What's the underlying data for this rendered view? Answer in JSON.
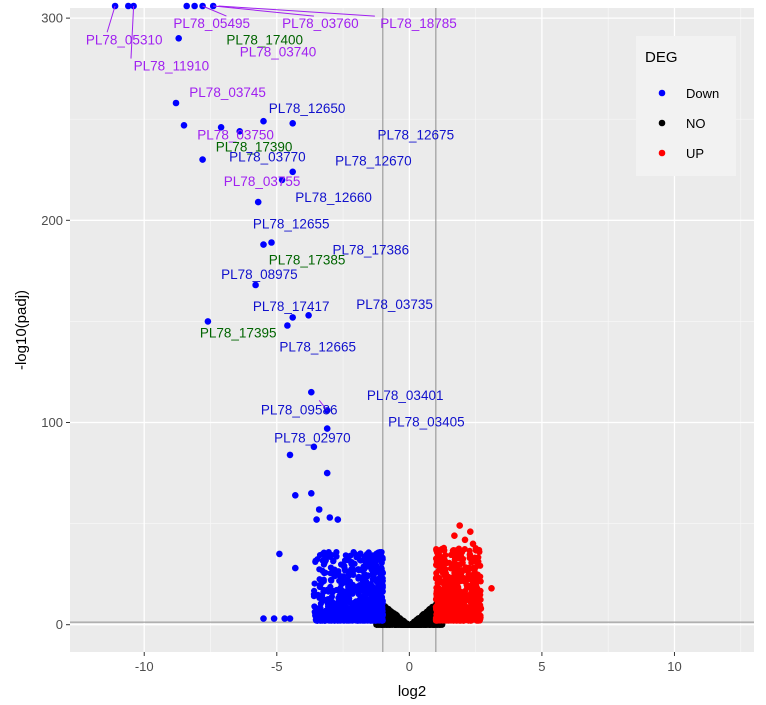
{
  "chart_data": {
    "type": "scatter",
    "title": "",
    "xlabel": "log2",
    "ylabel": "-log10(padj)",
    "xlim": [
      -12.8,
      13.0
    ],
    "ylim": [
      -13.5,
      305
    ],
    "x_ticks": [
      -10,
      -5,
      0,
      5,
      10
    ],
    "x_tick_labels": [
      "-10",
      "-5",
      "0",
      "5",
      "10"
    ],
    "y_ticks": [
      0,
      100,
      200,
      300
    ],
    "y_tick_labels": [
      "0",
      "100",
      "200",
      "300"
    ],
    "grid": true,
    "vlines": [
      -1,
      1
    ],
    "hline": 1.3,
    "legend": {
      "title": "DEG",
      "position": "top-right",
      "entries": [
        {
          "label": "Down",
          "color": "#0000ff"
        },
        {
          "label": "NO",
          "color": "#000000"
        },
        {
          "label": "UP",
          "color": "#ff0000"
        }
      ]
    },
    "colors": {
      "Down": "#0000ff",
      "NO": "#000000",
      "UP": "#ff0000",
      "panel": "#ebebeb",
      "grid": "#ffffff",
      "ref_line": "#8c8c8c"
    },
    "label_colors": {
      "blue": "#1010cc",
      "purple": "#a020f0",
      "green": "#006400"
    },
    "series": [
      {
        "name": "Down",
        "color": "#0000ff",
        "points": [
          [
            -11.1,
            306
          ],
          [
            -10.6,
            306
          ],
          [
            -10.4,
            306
          ],
          [
            -8.4,
            306
          ],
          [
            -8.1,
            306
          ],
          [
            -7.8,
            306
          ],
          [
            -7.4,
            306
          ],
          [
            -8.7,
            290
          ],
          [
            -8.8,
            258
          ],
          [
            -8.5,
            247
          ],
          [
            -7.1,
            246
          ],
          [
            -6.4,
            244
          ],
          [
            -5.5,
            249
          ],
          [
            -4.4,
            248
          ],
          [
            -7.8,
            230
          ],
          [
            -4.8,
            220
          ],
          [
            -4.4,
            224
          ],
          [
            -5.7,
            209
          ],
          [
            -5.5,
            188
          ],
          [
            -5.2,
            189
          ],
          [
            -5.8,
            168
          ],
          [
            -7.6,
            150
          ],
          [
            -4.6,
            148
          ],
          [
            -4.4,
            152
          ],
          [
            -3.8,
            153
          ],
          [
            -3.7,
            115
          ],
          [
            -3.1,
            106
          ],
          [
            -3.1,
            97
          ],
          [
            -3.6,
            88
          ],
          [
            -4.5,
            84
          ],
          [
            -3.1,
            75
          ],
          [
            -4.3,
            64
          ],
          [
            -3.7,
            65
          ],
          [
            -3.4,
            57
          ],
          [
            -3.5,
            52
          ],
          [
            -3.0,
            53
          ],
          [
            -2.7,
            52
          ],
          [
            -4.9,
            35
          ],
          [
            -4.3,
            28
          ],
          [
            -5.5,
            3
          ],
          [
            -5.1,
            3
          ],
          [
            -4.7,
            3
          ],
          [
            -4.5,
            3
          ]
        ]
      },
      {
        "name": "NO",
        "color": "#000000",
        "points": []
      },
      {
        "name": "UP",
        "color": "#ff0000",
        "points": [
          [
            1.9,
            49
          ],
          [
            2.3,
            46
          ],
          [
            2.1,
            42
          ],
          [
            1.7,
            44
          ],
          [
            2.4,
            40
          ],
          [
            3.1,
            18
          ],
          [
            2.7,
            8
          ]
        ]
      }
    ],
    "annotations": [
      {
        "text": "PL78_05495",
        "x": -8.9,
        "y": 297.5,
        "color": "purple"
      },
      {
        "text": "PL78_03760",
        "x": -4.8,
        "y": 297.5,
        "color": "purple"
      },
      {
        "text": "PL78_18785",
        "x": -1.1,
        "y": 297.5,
        "color": "purple"
      },
      {
        "text": "PL78_05310",
        "x": -12.2,
        "y": 289.5,
        "color": "purple"
      },
      {
        "text": "PL78_17400",
        "x": -6.9,
        "y": 289.5,
        "color": "green"
      },
      {
        "text": "PL78_03740",
        "x": -6.4,
        "y": 283.5,
        "color": "purple"
      },
      {
        "text": "PL78_11910",
        "x": -10.4,
        "y": 276.5,
        "color": "purple"
      },
      {
        "text": "PL78_03745",
        "x": -8.3,
        "y": 263.5,
        "color": "purple"
      },
      {
        "text": "PL78_12650",
        "x": -5.3,
        "y": 255.5,
        "color": "blue"
      },
      {
        "text": "PL78_03750",
        "x": -8.0,
        "y": 242.5,
        "color": "purple"
      },
      {
        "text": "PL78_12675",
        "x": -1.2,
        "y": 242.5,
        "color": "blue"
      },
      {
        "text": "PL78_17390",
        "x": -7.3,
        "y": 236.5,
        "color": "green"
      },
      {
        "text": "PL78_03770",
        "x": -6.8,
        "y": 231.5,
        "color": "blue"
      },
      {
        "text": "PL78_12670",
        "x": -2.8,
        "y": 229.5,
        "color": "blue"
      },
      {
        "text": "PL78_03755",
        "x": -7.0,
        "y": 219.5,
        "color": "purple"
      },
      {
        "text": "PL78_12660",
        "x": -4.3,
        "y": 211.5,
        "color": "blue"
      },
      {
        "text": "PL78_12655",
        "x": -5.9,
        "y": 198.5,
        "color": "blue"
      },
      {
        "text": "PL78_17386",
        "x": -2.9,
        "y": 185.5,
        "color": "blue"
      },
      {
        "text": "PL78_17385",
        "x": -5.3,
        "y": 180.5,
        "color": "green"
      },
      {
        "text": "PL78_08975",
        "x": -7.1,
        "y": 173.5,
        "color": "blue"
      },
      {
        "text": "PL78_17417",
        "x": -5.9,
        "y": 157.5,
        "color": "blue"
      },
      {
        "text": "PL78_03735",
        "x": -2.0,
        "y": 158.5,
        "color": "blue"
      },
      {
        "text": "PL78_17395",
        "x": -7.9,
        "y": 144.5,
        "color": "green"
      },
      {
        "text": "PL78_12665",
        "x": -4.9,
        "y": 137.5,
        "color": "blue"
      },
      {
        "text": "PL78_03401",
        "x": -1.6,
        "y": 113.5,
        "color": "blue"
      },
      {
        "text": "PL78_09586",
        "x": -5.6,
        "y": 106.5,
        "color": "blue"
      },
      {
        "text": "PL78_03405",
        "x": -0.8,
        "y": 100.5,
        "color": "blue"
      },
      {
        "text": "PL78_02970",
        "x": -5.1,
        "y": 92.5,
        "color": "blue"
      }
    ],
    "leader_lines": [
      [
        -7.4,
        306,
        -3.6,
        301
      ],
      [
        -7.8,
        306,
        -6.9,
        301
      ],
      [
        -7.2,
        306,
        -1.3,
        301
      ],
      [
        -11.1,
        306,
        -11.4,
        293
      ],
      [
        -10.4,
        306,
        -10.5,
        280
      ],
      [
        -3.1,
        106,
        -3.4,
        111
      ]
    ]
  }
}
